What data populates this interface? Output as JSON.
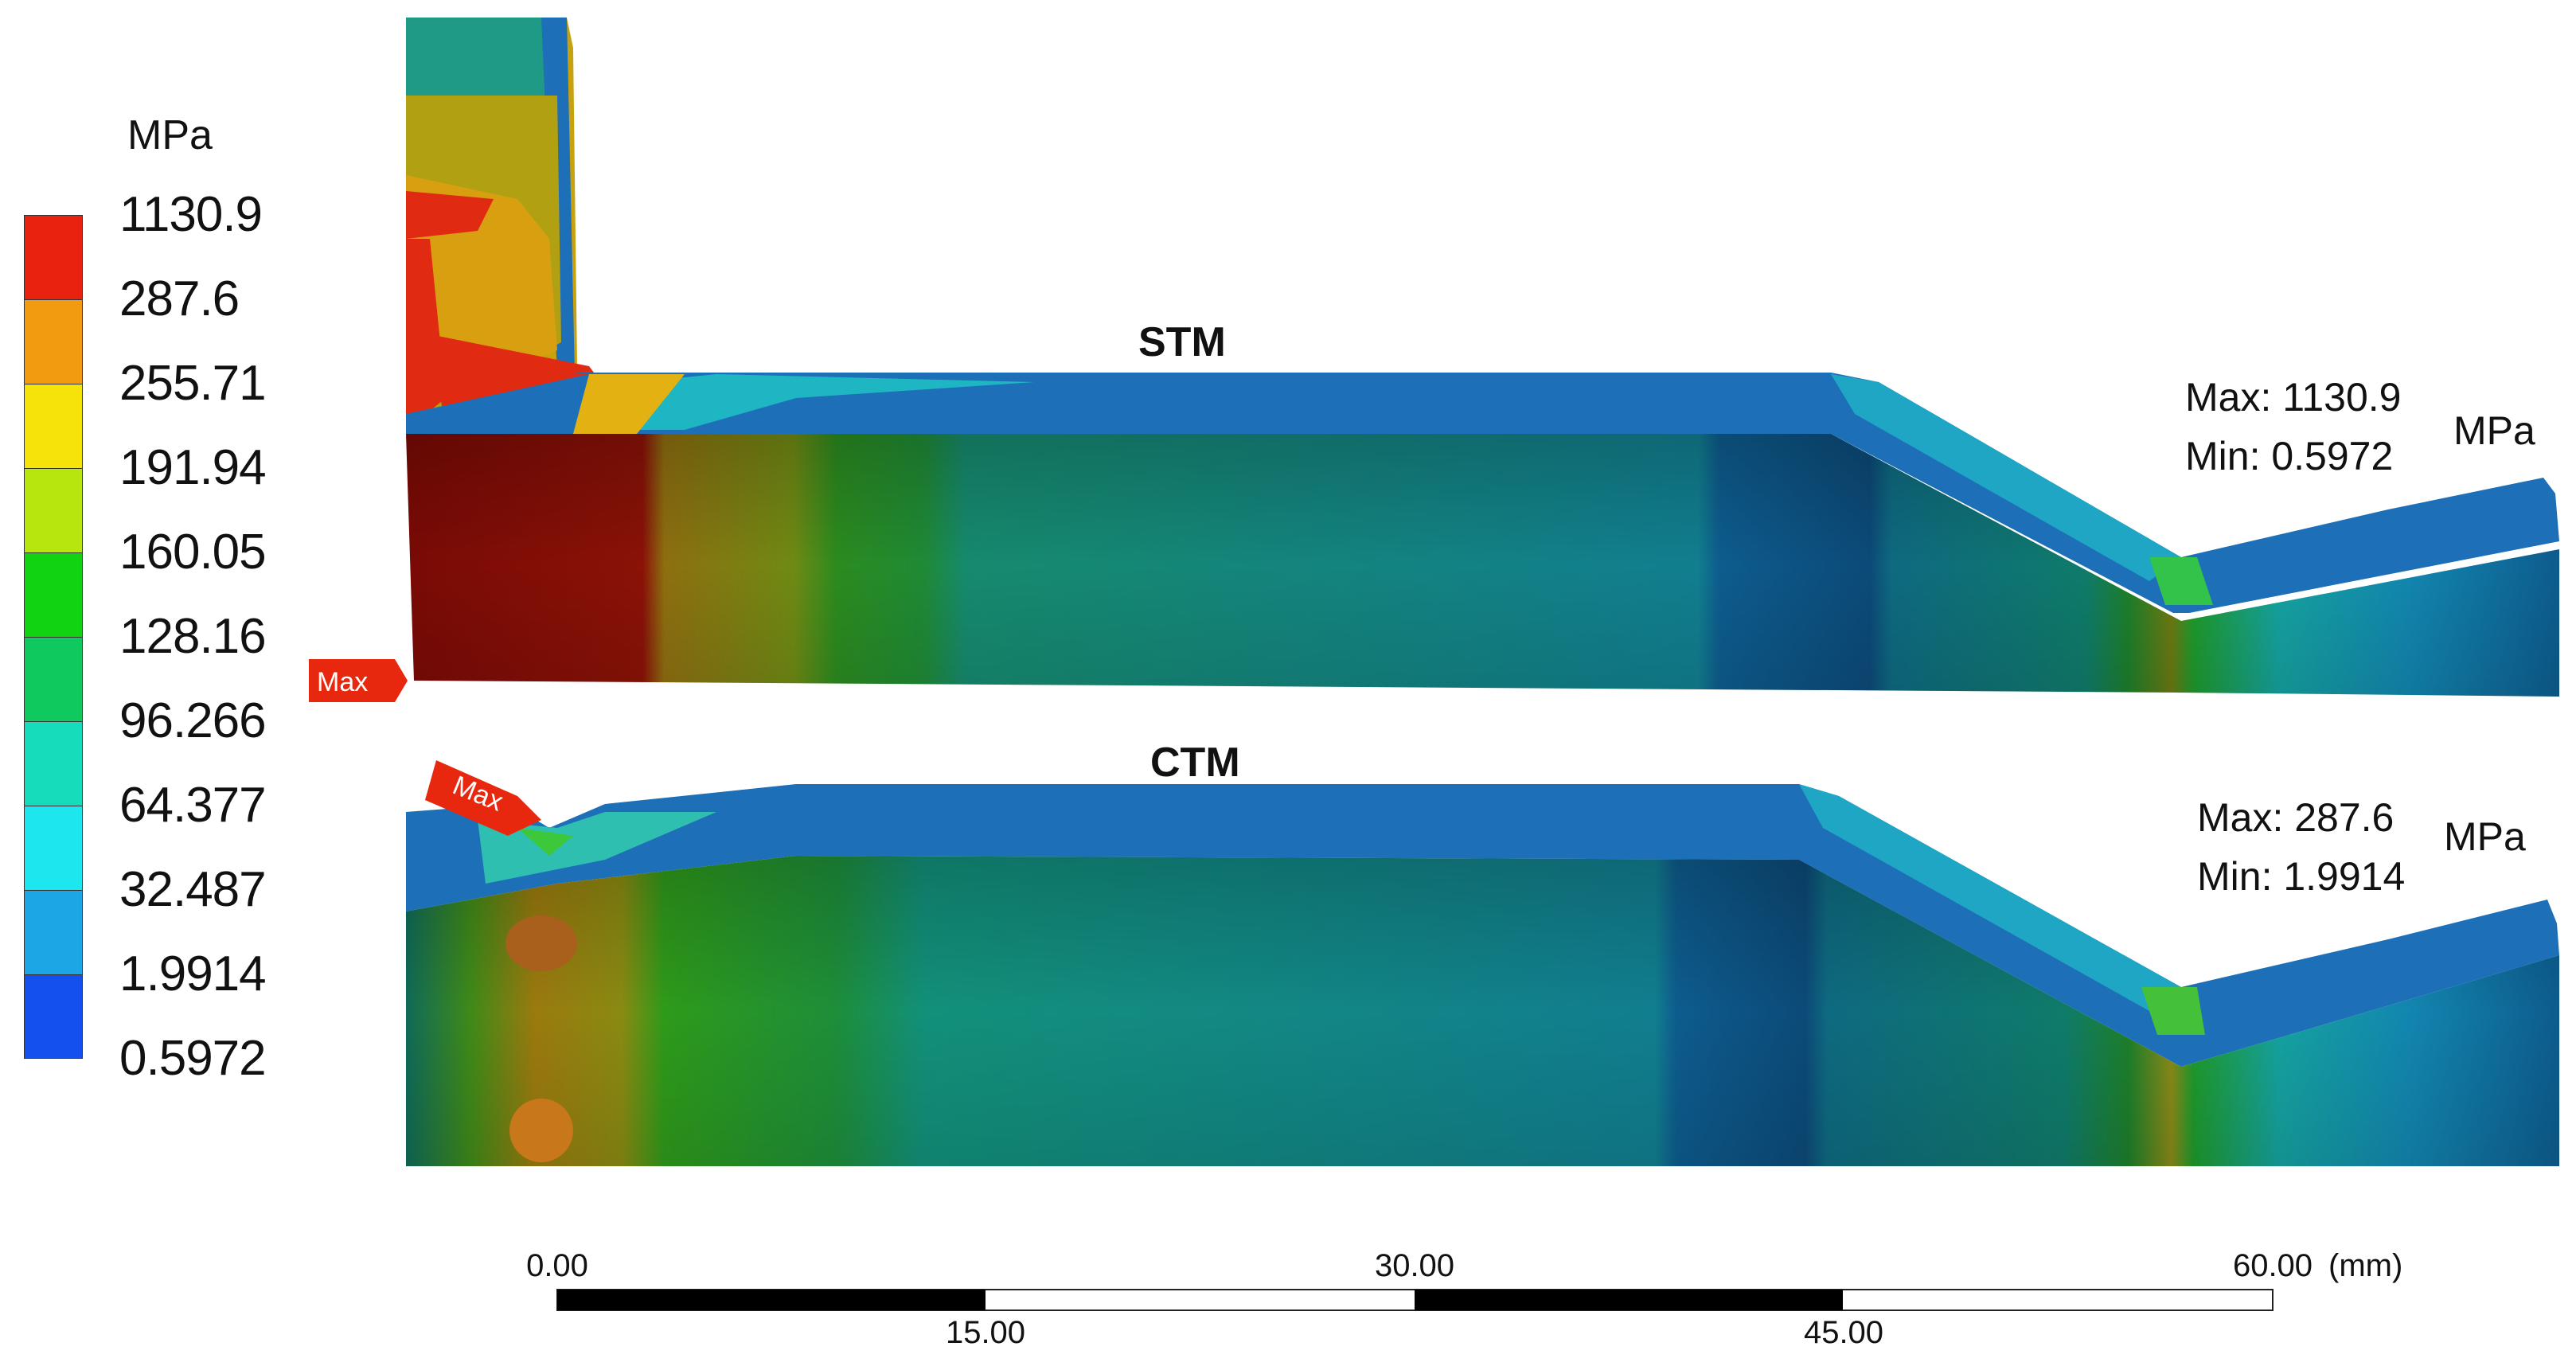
{
  "legend": {
    "unit": "MPa",
    "labels": [
      "1130.9",
      "287.6",
      "255.71",
      "191.94",
      "160.05",
      "128.16",
      "96.266",
      "64.377",
      "32.487",
      "1.9914",
      "0.5972"
    ],
    "colors": [
      "#e8220f",
      "#f29a10",
      "#f6e30a",
      "#b6e60e",
      "#12d312",
      "#10c95e",
      "#16dcbc",
      "#1ee6ee",
      "#1ca6e6",
      "#1450ee"
    ]
  },
  "models": [
    {
      "title": "STM",
      "max_label": "Max: 1130.9",
      "min_label": "Min: 0.5972",
      "unit": "MPa",
      "max_tag": "Max"
    },
    {
      "title": "CTM",
      "max_label": "Max: 287.6",
      "min_label": "Min: 1.9914",
      "unit": "MPa",
      "max_tag": "Max"
    }
  ],
  "scale_bar": {
    "top_labels": [
      "0.00",
      "30.00",
      "60.00"
    ],
    "bottom_labels": [
      "15.00",
      "45.00"
    ],
    "unit": "(mm)"
  }
}
